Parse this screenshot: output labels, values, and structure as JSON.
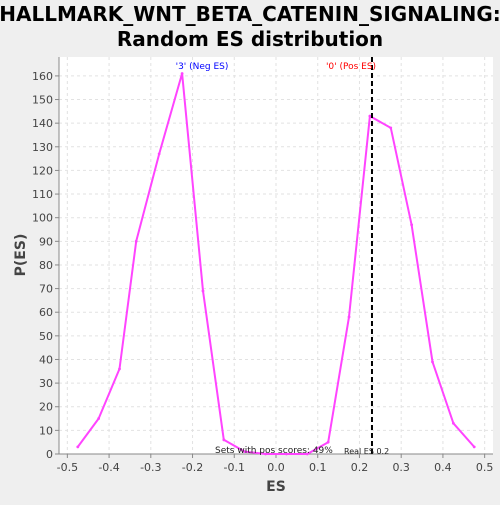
{
  "chart_data": {
    "type": "line",
    "title_lines": [
      "HALLMARK_WNT_BETA_CATENIN_SIGNALING:",
      "Random ES distribution"
    ],
    "xlabel": "ES",
    "ylabel": "P(ES)",
    "xlim": [
      -0.52,
      0.52
    ],
    "ylim": [
      0,
      168
    ],
    "xticks": [
      "-0.5",
      "-0.4",
      "-0.3",
      "-0.2",
      "-0.1",
      "0.0",
      "0.1",
      "0.2",
      "0.3",
      "0.4",
      "0.5"
    ],
    "yticks": [
      "0",
      "10",
      "20",
      "30",
      "40",
      "50",
      "60",
      "70",
      "80",
      "90",
      "100",
      "110",
      "120",
      "130",
      "140",
      "150",
      "160"
    ],
    "grid": true,
    "series": [
      {
        "color": "#ff44ff",
        "x": [
          -0.475,
          -0.425,
          -0.375,
          -0.335,
          -0.28,
          -0.225,
          -0.175,
          -0.125,
          -0.075,
          -0.025,
          0.025,
          0.075,
          0.125,
          0.175,
          0.225,
          0.275,
          0.325,
          0.375,
          0.425,
          0.475
        ],
        "y": [
          3,
          15,
          36,
          90,
          127,
          161,
          69,
          6,
          1,
          0,
          0,
          0,
          5,
          58,
          143,
          138,
          97,
          39,
          13,
          3
        ]
      }
    ],
    "real_es": 0.23,
    "real_es_line_color": "#000000",
    "annotations": {
      "neg_label": "'3' (Neg ES)",
      "neg_color": "#0000ff",
      "pos_label": "'0' (Pos ES)",
      "pos_color": "#ff0000",
      "pos_scores_text": "Sets with pos scores: 49%",
      "real_es_text": "Real ES 0.2"
    }
  }
}
